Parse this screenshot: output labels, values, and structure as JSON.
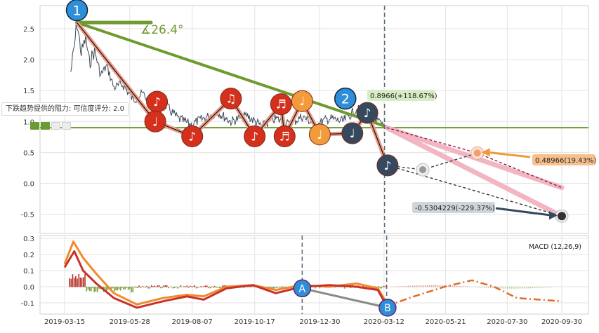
{
  "chart_data": [
    {
      "type": "line",
      "panel": "price",
      "x_ticks": [
        "2019-03-15",
        "2019-05-28",
        "2019-08-07",
        "2019-10-17",
        "2019-12-30",
        "2020-03-12",
        "2020-05-21",
        "2020-07-30",
        "2020-09-30"
      ],
      "y_ticks": [
        "2.5",
        "2.0",
        "1.5",
        "1.0",
        "0.5",
        "0.0",
        "-0.5"
      ],
      "ylim": [
        -0.65,
        2.85
      ],
      "grid": true,
      "price_keypoints": [
        [
          "2019-03-22",
          1.8
        ],
        [
          "2019-03-26",
          2.2
        ],
        [
          "2019-03-29",
          2.6
        ],
        [
          "2019-04-03",
          2.1
        ],
        [
          "2019-04-08",
          2.35
        ],
        [
          "2019-04-12",
          1.95
        ],
        [
          "2019-04-18",
          2.15
        ],
        [
          "2019-04-25",
          1.75
        ],
        [
          "2019-05-02",
          1.9
        ],
        [
          "2019-05-10",
          1.55
        ],
        [
          "2019-05-20",
          1.6
        ],
        [
          "2019-06-01",
          1.35
        ],
        [
          "2019-06-12",
          1.45
        ],
        [
          "2019-06-25",
          1.2
        ],
        [
          "2019-07-08",
          1.25
        ],
        [
          "2019-07-22",
          1.05
        ],
        [
          "2019-08-05",
          0.95
        ],
        [
          "2019-08-20",
          1.05
        ],
        [
          "2019-09-05",
          1.15
        ],
        [
          "2019-09-20",
          1.0
        ],
        [
          "2019-10-08",
          1.1
        ],
        [
          "2019-10-25",
          0.92
        ],
        [
          "2019-11-10",
          1.05
        ],
        [
          "2019-11-25",
          0.95
        ],
        [
          "2019-12-10",
          1.08
        ],
        [
          "2019-12-25",
          0.95
        ],
        [
          "2020-01-10",
          1.05
        ],
        [
          "2020-01-25",
          1.0
        ],
        [
          "2020-02-10",
          1.2
        ],
        [
          "2020-02-25",
          1.1
        ],
        [
          "2020-03-05",
          1.0
        ],
        [
          "2020-03-15",
          0.85
        ]
      ],
      "trend_line": {
        "from": [
          "2019-03-29",
          2.6
        ],
        "to": [
          "2020-03-15",
          0.9
        ]
      },
      "angle_label": "26.4",
      "support_level": 0.9,
      "resistance_label": "下跌趋势提供的阻力: 可信度评分: 2.0",
      "wave_points": [
        {
          "label": "♪",
          "date": "2019-06-28",
          "value": 1.32,
          "color": "#d4301c"
        },
        {
          "label": "♩",
          "date": "2019-06-26",
          "value": 1.0,
          "color": "#d4301c"
        },
        {
          "label": "♪",
          "date": "2019-08-07",
          "value": 0.76,
          "color": "#d4301c"
        },
        {
          "label": "♫",
          "date": "2019-09-20",
          "value": 1.37,
          "color": "#d4301c"
        },
        {
          "label": "♪",
          "date": "2019-10-17",
          "value": 0.76,
          "color": "#d4301c"
        },
        {
          "label": "♬",
          "date": "2019-11-16",
          "value": 1.28,
          "color": "#d4301c"
        },
        {
          "label": "♬",
          "date": "2019-11-20",
          "value": 0.76,
          "color": "#d4301c"
        },
        {
          "label": "♩",
          "date": "2019-12-10",
          "value": 1.33,
          "color": "#f39a3a"
        },
        {
          "label": "♩",
          "date": "2019-12-30",
          "value": 0.79,
          "color": "#f39a3a"
        },
        {
          "label": "♩",
          "date": "2020-02-05",
          "value": 0.81,
          "color": "#34495e"
        },
        {
          "label": "♪",
          "date": "2020-02-22",
          "value": 1.14,
          "color": "#34495e"
        },
        {
          "label": "♪",
          "date": "2020-03-16",
          "value": 0.29,
          "color": "#34495e"
        }
      ],
      "markers": [
        {
          "label": "1",
          "date": "2019-03-29",
          "value": 2.8
        },
        {
          "label": "2",
          "date": "2020-01-28",
          "value": 1.37
        }
      ],
      "projection": {
        "start": [
          "2020-03-15",
          0.9
        ],
        "upper_end": [
          "2020-09-30",
          -0.07
        ],
        "lower_end": [
          "2020-09-30",
          -0.53
        ],
        "mid_point": [
          "2020-06-26",
          0.49
        ],
        "low_point": [
          "2020-04-25",
          0.22
        ]
      },
      "labels": [
        {
          "text": "0.8966(+118.67%)",
          "color": "#d5ecc4"
        },
        {
          "text": "0.48966(19.43%)",
          "color": "#f7c08c"
        },
        {
          "text": "-0.5304229(-229.37%)",
          "color": "#ced6dc"
        }
      ]
    },
    {
      "type": "bar",
      "panel": "macd",
      "title": "MACD (12,26,9)",
      "y_ticks": [
        "0.3",
        "0.2",
        "0.1",
        "0.0",
        "-0.1"
      ],
      "ylim": [
        -0.16,
        0.32
      ],
      "grid": true,
      "dif_line": [
        [
          "2019-03-15",
          0.12
        ],
        [
          "2019-03-26",
          0.22
        ],
        [
          "2019-04-05",
          0.1
        ],
        [
          "2019-04-20",
          0.02
        ],
        [
          "2019-05-10",
          -0.07
        ],
        [
          "2019-06-05",
          -0.13
        ],
        [
          "2019-07-05",
          -0.09
        ],
        [
          "2019-08-01",
          -0.06
        ],
        [
          "2019-08-20",
          -0.08
        ],
        [
          "2019-09-15",
          -0.01
        ],
        [
          "2019-10-15",
          0.01
        ],
        [
          "2019-11-10",
          -0.04
        ],
        [
          "2019-12-10",
          0.0
        ],
        [
          "2020-01-10",
          0.01
        ],
        [
          "2020-02-10",
          0.0
        ],
        [
          "2020-03-05",
          -0.02
        ],
        [
          "2020-03-15",
          -0.12
        ]
      ],
      "dea_line": [
        [
          "2019-03-15",
          0.14
        ],
        [
          "2019-03-25",
          0.28
        ],
        [
          "2019-04-05",
          0.18
        ],
        [
          "2019-04-20",
          0.08
        ],
        [
          "2019-05-10",
          -0.04
        ],
        [
          "2019-06-05",
          -0.11
        ],
        [
          "2019-07-05",
          -0.07
        ],
        [
          "2019-08-01",
          -0.05
        ],
        [
          "2019-08-20",
          -0.06
        ],
        [
          "2019-09-15",
          0.0
        ],
        [
          "2019-10-15",
          0.01
        ],
        [
          "2019-11-10",
          -0.02
        ],
        [
          "2019-12-10",
          0.01
        ],
        [
          "2020-01-10",
          0.0
        ],
        [
          "2020-02-10",
          0.02
        ],
        [
          "2020-03-05",
          -0.01
        ],
        [
          "2020-03-15",
          -0.1
        ]
      ],
      "projection": [
        [
          "2020-03-15",
          -0.12
        ],
        [
          "2020-04-15",
          -0.06
        ],
        [
          "2020-05-20",
          0.0
        ],
        [
          "2020-06-20",
          0.04
        ],
        [
          "2020-07-15",
          0.0
        ],
        [
          "2020-08-10",
          -0.07
        ],
        [
          "2020-09-30",
          -0.09
        ]
      ],
      "markers": [
        {
          "label": "A",
          "date": "2019-12-10",
          "value": -0.01
        },
        {
          "label": "B",
          "date": "2020-03-16",
          "value": -0.13
        }
      ]
    }
  ]
}
